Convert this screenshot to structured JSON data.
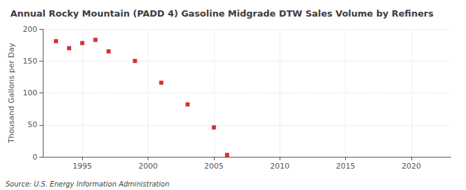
{
  "chart_data": {
    "type": "scatter",
    "title": "Annual Rocky Mountain (PADD 4) Gasoline Midgrade DTW Sales Volume by Refiners",
    "ylabel": "Thousand Gallons per Day",
    "source": "Source: U.S. Energy Information Administration",
    "x": [
      1993,
      1994,
      1995,
      1996,
      1997,
      1999,
      2001,
      2003,
      2005,
      2006
    ],
    "values": [
      181,
      170,
      178,
      183,
      165,
      150,
      116,
      82,
      46,
      3
    ],
    "color": "#cc0000",
    "marker": "square",
    "xlim": [
      1992,
      2023
    ],
    "ylim": [
      0,
      200
    ],
    "xticks": [
      1995,
      2000,
      2005,
      2010,
      2015,
      2020
    ],
    "yticks": [
      0,
      50,
      100,
      150,
      200
    ],
    "grid": true
  }
}
